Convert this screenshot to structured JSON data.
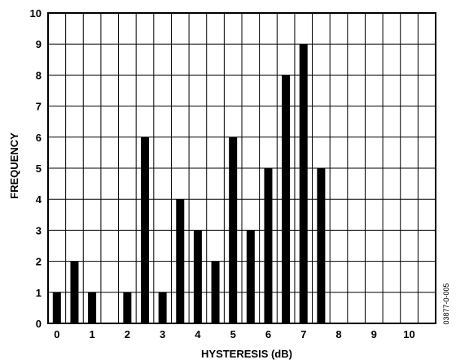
{
  "chart_data": {
    "type": "bar",
    "xlabel": "HYSTERESIS (dB)",
    "ylabel": "FREQUENCY",
    "xlim": [
      -0.25,
      10.75
    ],
    "ylim": [
      0,
      10
    ],
    "grid": true,
    "x_ticks": [
      "0",
      "1",
      "2",
      "3",
      "4",
      "5",
      "6",
      "7",
      "8",
      "9",
      "10"
    ],
    "y_ticks": [
      "0",
      "1",
      "2",
      "3",
      "4",
      "5",
      "6",
      "7",
      "8",
      "9",
      "10"
    ],
    "x": [
      0,
      0.5,
      1,
      2,
      2.5,
      3,
      3.5,
      4,
      4.5,
      5,
      5.5,
      6,
      6.5,
      7,
      7.5
    ],
    "values": [
      1,
      2,
      1,
      1,
      6,
      1,
      4,
      3,
      2,
      6,
      3,
      5,
      8,
      9,
      5
    ],
    "bar_color": "#000000"
  },
  "figure_id": "03877-0-005"
}
